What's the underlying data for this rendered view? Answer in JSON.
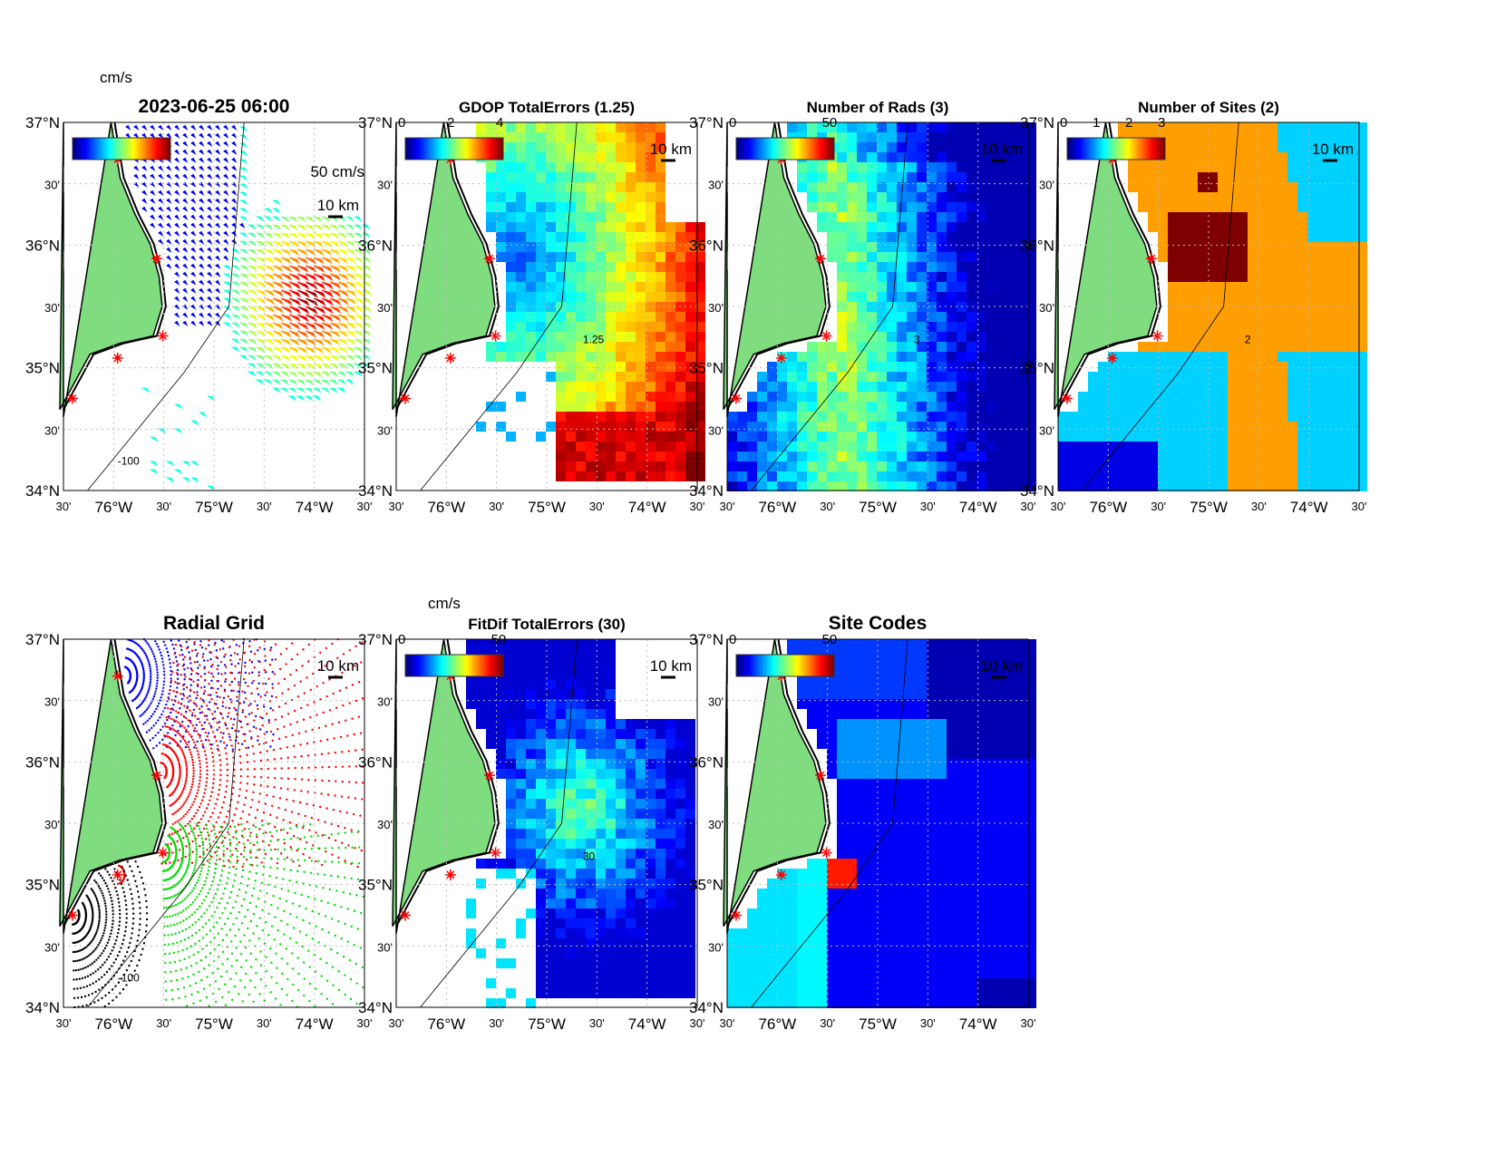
{
  "chart_data": [
    {
      "type": "quiver",
      "title": "2023-06-25 06:00",
      "colorbar_label": "cm/s",
      "scale_label": "50 cm/s",
      "distance_label": "10 km",
      "contour_label": "-100",
      "field": "currents"
    },
    {
      "type": "heatmap",
      "title": "GDOP TotalErrors (1.25)",
      "colorbar_ticks": [
        "0",
        "2",
        "4"
      ],
      "distance_label": "10 km",
      "contour_label": "1.25",
      "field": "gdop"
    },
    {
      "type": "heatmap",
      "title": "Number of Rads (3)",
      "colorbar_ticks": [
        "0",
        "50"
      ],
      "distance_label": "10 km",
      "contour_label": "3",
      "field": "rads"
    },
    {
      "type": "heatmap",
      "title": "Number of Sites (2)",
      "colorbar_ticks": [
        "0",
        "1",
        "2",
        "3"
      ],
      "distance_label": "10 km",
      "contour_label": "2",
      "field": "sites"
    },
    {
      "type": "scatter",
      "title": "Radial Grid",
      "distance_label": "10 km",
      "contour_label": "-100",
      "field": "grid"
    },
    {
      "type": "heatmap",
      "title": "FitDif TotalErrors (30)",
      "colorbar_label": "cm/s",
      "colorbar_ticks": [
        "0",
        "50"
      ],
      "distance_label": "10 km",
      "contour_label": "30",
      "field": "fitdif"
    },
    {
      "type": "heatmap",
      "title": "Site Codes",
      "colorbar_ticks": [
        "0",
        "50"
      ],
      "distance_label": "10 km",
      "field": "codes"
    }
  ],
  "axes": {
    "lat_ticks": [
      "37°N",
      "30'",
      "36°N",
      "30'",
      "35°N",
      "30'",
      "34°N"
    ],
    "lon_ticks": [
      "30'",
      "76°W",
      "30'",
      "75°W",
      "30'",
      "74°W",
      "30'"
    ],
    "ylim": [
      34,
      37
    ],
    "xlim": [
      -76.5,
      -73.5
    ]
  },
  "colors": {
    "land": "#7fdd7f",
    "site_marker": "#ff0000"
  }
}
